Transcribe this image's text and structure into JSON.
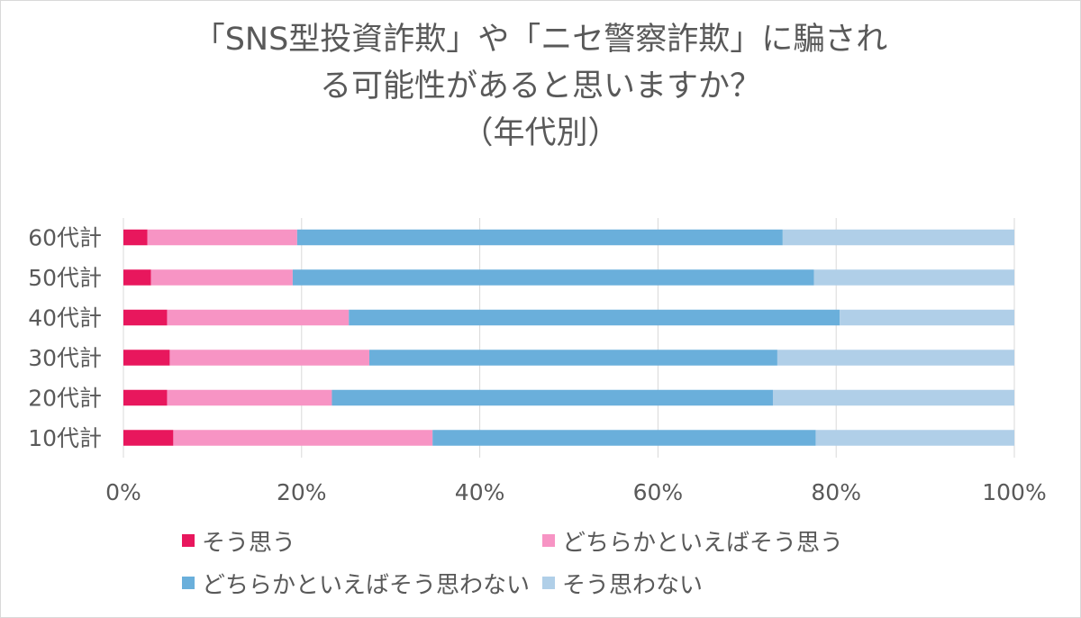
{
  "chart_data": {
    "type": "bar",
    "orientation": "horizontal",
    "stacked": "percent",
    "title": [
      "「SNS型投資詐欺」や「ニセ警察詐欺」に騙され",
      "る可能性があると思いますか？",
      "（年代別）"
    ],
    "categories": [
      "60代計",
      "50代計",
      "40代計",
      "30代計",
      "20代計",
      "10代計"
    ],
    "x_ticks": [
      "0%",
      "20%",
      "40%",
      "60%",
      "80%",
      "100%"
    ],
    "xlim": [
      0,
      100
    ],
    "grid": true,
    "legend_position": "bottom",
    "series": [
      {
        "name": "そう思う",
        "color": "#e8175d",
        "values": [
          2.7,
          3.1,
          4.9,
          5.2,
          4.9,
          5.6
        ]
      },
      {
        "name": "どちらかといえばそう思う",
        "color": "#f794c4",
        "values": [
          16.8,
          15.9,
          20.4,
          22.4,
          18.5,
          29.1
        ]
      },
      {
        "name": "どちらかといえばそう思わない",
        "color": "#6aafdb",
        "values": [
          54.5,
          58.5,
          55.1,
          45.8,
          49.5,
          43.0
        ]
      },
      {
        "name": "そう思わない",
        "color": "#b0cfe8",
        "values": [
          26.0,
          22.5,
          19.6,
          26.6,
          27.1,
          22.3
        ]
      }
    ]
  }
}
